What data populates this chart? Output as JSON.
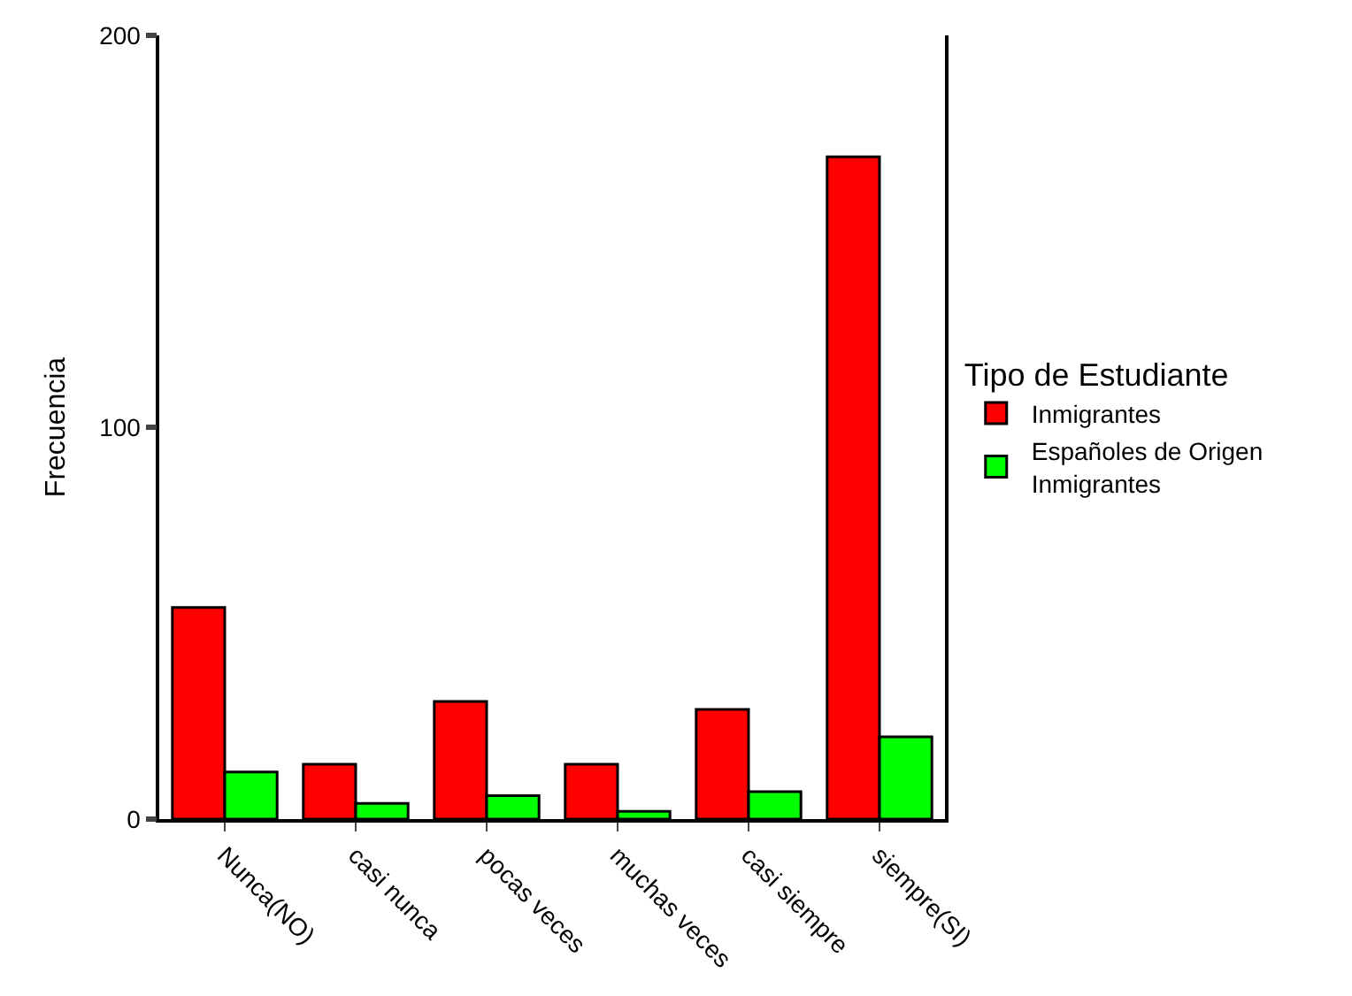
{
  "chart_data": {
    "type": "bar",
    "ylabel": "Frecuencia",
    "legend_title": "Tipo de Estudiante",
    "legend": "right",
    "categories": [
      "Nunca(NO)",
      "casi nunca",
      "pocas veces",
      "muchas veces",
      "casi siempre",
      "siempre(SI)"
    ],
    "series": [
      {
        "name": "Inmigrantes",
        "color": "#ff0000",
        "values": [
          54,
          14,
          30,
          14,
          28,
          169
        ]
      },
      {
        "name": "Españoles de Origen Inmigrantes",
        "color": "#00ff00",
        "values": [
          12,
          4,
          6,
          2,
          7,
          21
        ]
      }
    ],
    "ylim": [
      0,
      200
    ],
    "yticks": [
      0,
      100,
      200
    ]
  }
}
